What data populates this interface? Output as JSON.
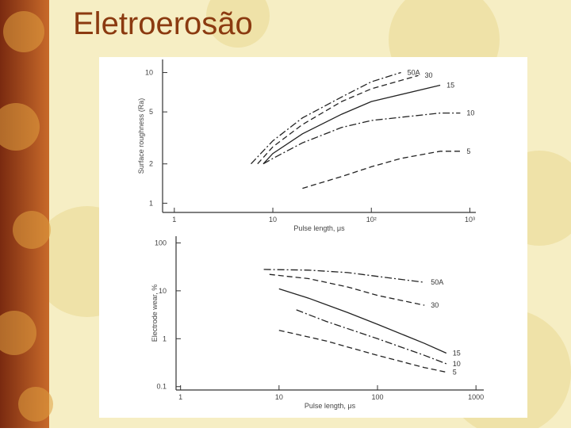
{
  "slide_title": "Eletroerosão",
  "chart_data": [
    {
      "type": "line",
      "log_x": true,
      "log_y": true,
      "x_label": "Pulse length, μs",
      "y_label": "Surface roughness (Ra)",
      "xlim": [
        0.76,
        1150
      ],
      "ylim": [
        0.85,
        12.6
      ],
      "xticks": [
        1,
        10,
        {
          "value": 100,
          "label": "10²"
        },
        {
          "value": 1000,
          "label": "10³"
        }
      ],
      "yticks": [
        1,
        2,
        5,
        10
      ],
      "series": [
        {
          "name": "50A",
          "color": "#222222",
          "dash": "dash-dot",
          "x": [
            6,
            10,
            20,
            50,
            100,
            200
          ],
          "values": [
            2,
            3,
            4.5,
            6.5,
            8.5,
            10
          ]
        },
        {
          "name": "30",
          "color": "#222222",
          "dash": "dash",
          "x": [
            7,
            10,
            20,
            50,
            100,
            300
          ],
          "values": [
            2,
            2.7,
            4,
            6,
            7.5,
            9.5
          ]
        },
        {
          "name": "15",
          "color": "#222222",
          "dash": "solid",
          "x": [
            8,
            10,
            20,
            50,
            100,
            500
          ],
          "values": [
            2,
            2.4,
            3.4,
            4.8,
            6,
            8
          ]
        },
        {
          "name": "10",
          "color": "#222222",
          "dash": "dash-dot",
          "x": [
            8,
            10,
            20,
            50,
            100,
            500,
            800
          ],
          "values": [
            2,
            2.2,
            2.9,
            3.8,
            4.3,
            4.9,
            4.9
          ]
        },
        {
          "name": "5",
          "color": "#222222",
          "dash": "dash",
          "x": [
            20,
            50,
            100,
            200,
            500,
            800
          ],
          "values": [
            1.3,
            1.6,
            1.9,
            2.2,
            2.5,
            2.5
          ]
        }
      ]
    },
    {
      "type": "line",
      "log_x": true,
      "log_y": true,
      "x_label": "Pulse length, μs",
      "y_label": "Electrode wear, %",
      "xlim": [
        0.9,
        1200
      ],
      "ylim": [
        0.085,
        138
      ],
      "xticks": [
        1,
        10,
        100,
        1000
      ],
      "yticks": [
        0.1,
        1,
        10,
        100
      ],
      "series": [
        {
          "name": "50A",
          "color": "#222222",
          "dash": "dash-dot",
          "x": [
            7,
            20,
            50,
            100,
            300
          ],
          "values": [
            28,
            27,
            24,
            20,
            15
          ]
        },
        {
          "name": "30",
          "color": "#222222",
          "dash": "dash",
          "x": [
            8,
            20,
            50,
            100,
            300
          ],
          "values": [
            22,
            18,
            12,
            8,
            5
          ]
        },
        {
          "name": "15",
          "color": "#222222",
          "dash": "solid",
          "x": [
            10,
            20,
            50,
            100,
            300,
            500
          ],
          "values": [
            11,
            7,
            3.5,
            2,
            0.8,
            0.5
          ]
        },
        {
          "name": "10",
          "color": "#222222",
          "dash": "dash-dot",
          "x": [
            15,
            30,
            100,
            300,
            500
          ],
          "values": [
            4,
            2.3,
            1,
            0.45,
            0.3
          ]
        },
        {
          "name": "5",
          "color": "#222222",
          "dash": "dash",
          "x": [
            10,
            30,
            100,
            300,
            500
          ],
          "values": [
            1.5,
            0.9,
            0.45,
            0.25,
            0.2
          ]
        }
      ]
    }
  ]
}
